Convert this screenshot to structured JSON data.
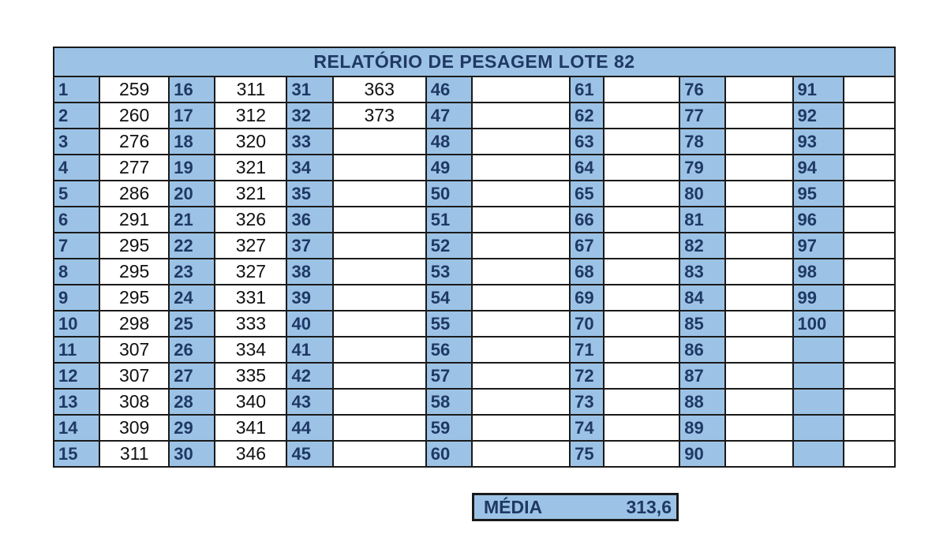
{
  "title": "RELATÓRIO DE PESAGEM LOTE 82",
  "columns": [
    {
      "ids": [
        "1",
        "2",
        "3",
        "4",
        "5",
        "6",
        "7",
        "8",
        "9",
        "10",
        "11",
        "12",
        "13",
        "14",
        "15"
      ],
      "values": [
        "259",
        "260",
        "276",
        "277",
        "286",
        "291",
        "295",
        "295",
        "295",
        "298",
        "307",
        "307",
        "308",
        "309",
        "311"
      ]
    },
    {
      "ids": [
        "16",
        "17",
        "18",
        "19",
        "20",
        "21",
        "22",
        "23",
        "24",
        "25",
        "26",
        "27",
        "28",
        "29",
        "30"
      ],
      "values": [
        "311",
        "312",
        "320",
        "321",
        "321",
        "326",
        "327",
        "327",
        "331",
        "333",
        "334",
        "335",
        "340",
        "341",
        "346"
      ]
    },
    {
      "ids": [
        "31",
        "32",
        "33",
        "34",
        "35",
        "36",
        "37",
        "38",
        "39",
        "40",
        "41",
        "42",
        "43",
        "44",
        "45"
      ],
      "values": [
        "363",
        "373",
        "",
        "",
        "",
        "",
        "",
        "",
        "",
        "",
        "",
        "",
        "",
        "",
        ""
      ]
    },
    {
      "ids": [
        "46",
        "47",
        "48",
        "49",
        "50",
        "51",
        "52",
        "53",
        "54",
        "55",
        "56",
        "57",
        "58",
        "59",
        "60"
      ],
      "values": [
        "",
        "",
        "",
        "",
        "",
        "",
        "",
        "",
        "",
        "",
        "",
        "",
        "",
        "",
        ""
      ]
    },
    {
      "ids": [
        "61",
        "62",
        "63",
        "64",
        "65",
        "66",
        "67",
        "68",
        "69",
        "70",
        "71",
        "72",
        "73",
        "74",
        "75"
      ],
      "values": [
        "",
        "",
        "",
        "",
        "",
        "",
        "",
        "",
        "",
        "",
        "",
        "",
        "",
        "",
        ""
      ]
    },
    {
      "ids": [
        "76",
        "77",
        "78",
        "79",
        "80",
        "81",
        "82",
        "83",
        "84",
        "85",
        "86",
        "87",
        "88",
        "89",
        "90"
      ],
      "values": [
        "",
        "",
        "",
        "",
        "",
        "",
        "",
        "",
        "",
        "",
        "",
        "",
        "",
        "",
        ""
      ]
    },
    {
      "ids": [
        "91",
        "92",
        "93",
        "94",
        "95",
        "96",
        "97",
        "98",
        "99",
        "100",
        "",
        "",
        "",
        "",
        ""
      ],
      "values": [
        "",
        "",
        "",
        "",
        "",
        "",
        "",
        "",
        "",
        "",
        "",
        "",
        "",
        "",
        ""
      ]
    }
  ],
  "average": {
    "label": "MÉDIA",
    "value": "313,6"
  },
  "colors": {
    "header_fill": "#9cc3e6",
    "header_text": "#1f3864",
    "border": "#1a1a1a"
  }
}
